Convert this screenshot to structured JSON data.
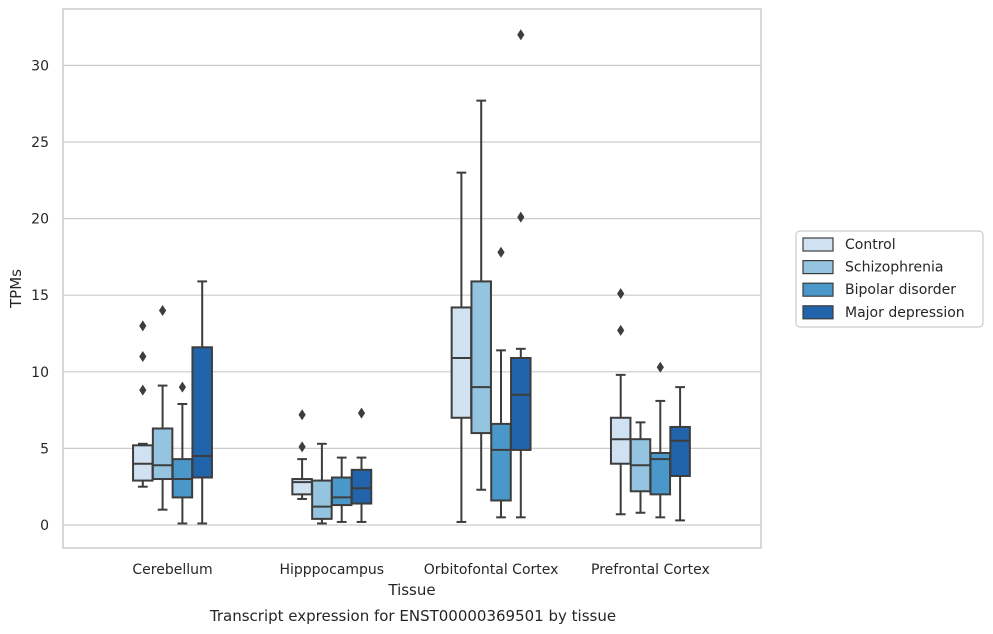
{
  "caption": "Transcript expression for ENST00000369501 by tissue",
  "chart_data": {
    "type": "box",
    "xlabel": "Tissue",
    "ylabel": "TPMs",
    "ylim": [
      -1.4,
      33.7
    ],
    "yticks": [
      0,
      5,
      10,
      15,
      20,
      25,
      30
    ],
    "grid": "horizontal",
    "legend_position": "right",
    "categories": [
      "Cerebellum",
      "Hipppocampus",
      "Orbitofontal Cortex",
      "Prefrontal Cortex"
    ],
    "series": [
      {
        "name": "Control",
        "color": "#d0e1f2",
        "boxes": [
          {
            "whislo": 2.5,
            "q1": 2.9,
            "med": 4.0,
            "q3": 5.2,
            "whishi": 5.3,
            "fliers": [
              8.8,
              11.0,
              13.0
            ]
          },
          {
            "whislo": 1.7,
            "q1": 2.0,
            "med": 2.8,
            "q3": 3.0,
            "whishi": 4.3,
            "fliers": [
              5.1,
              7.2
            ]
          },
          {
            "whislo": 0.2,
            "q1": 7.0,
            "med": 10.9,
            "q3": 14.2,
            "whishi": 23.0,
            "fliers": []
          },
          {
            "whislo": 0.7,
            "q1": 4.0,
            "med": 5.6,
            "q3": 7.0,
            "whishi": 9.8,
            "fliers": [
              12.7,
              15.1
            ]
          }
        ]
      },
      {
        "name": "Schizophrenia",
        "color": "#94c4df",
        "boxes": [
          {
            "whislo": 1.0,
            "q1": 3.0,
            "med": 3.9,
            "q3": 6.3,
            "whishi": 9.1,
            "fliers": [
              14.0
            ]
          },
          {
            "whislo": 0.1,
            "q1": 0.4,
            "med": 1.2,
            "q3": 2.9,
            "whishi": 5.3,
            "fliers": []
          },
          {
            "whislo": 2.3,
            "q1": 6.0,
            "med": 9.0,
            "q3": 15.9,
            "whishi": 27.7,
            "fliers": []
          },
          {
            "whislo": 0.8,
            "q1": 2.2,
            "med": 3.9,
            "q3": 5.6,
            "whishi": 6.7,
            "fliers": []
          }
        ]
      },
      {
        "name": "Bipolar disorder",
        "color": "#4a98c9",
        "boxes": [
          {
            "whislo": 0.1,
            "q1": 1.8,
            "med": 3.0,
            "q3": 4.3,
            "whishi": 7.9,
            "fliers": [
              9.0
            ]
          },
          {
            "whislo": 0.2,
            "q1": 1.3,
            "med": 1.8,
            "q3": 3.1,
            "whishi": 4.4,
            "fliers": []
          },
          {
            "whislo": 0.5,
            "q1": 1.6,
            "med": 4.9,
            "q3": 6.6,
            "whishi": 11.4,
            "fliers": [
              17.8
            ]
          },
          {
            "whislo": 0.5,
            "q1": 2.0,
            "med": 4.3,
            "q3": 4.7,
            "whishi": 8.1,
            "fliers": [
              10.3
            ]
          }
        ]
      },
      {
        "name": "Major depression",
        "color": "#2164ab",
        "boxes": [
          {
            "whislo": 0.1,
            "q1": 3.1,
            "med": 4.5,
            "q3": 11.6,
            "whishi": 15.9,
            "fliers": []
          },
          {
            "whislo": 0.2,
            "q1": 1.4,
            "med": 2.4,
            "q3": 3.6,
            "whishi": 4.4,
            "fliers": [
              7.3
            ]
          },
          {
            "whislo": 0.5,
            "q1": 4.9,
            "med": 8.5,
            "q3": 10.9,
            "whishi": 11.5,
            "fliers": [
              20.1,
              32.0
            ]
          },
          {
            "whislo": 0.3,
            "q1": 3.2,
            "med": 5.5,
            "q3": 6.4,
            "whishi": 9.0,
            "fliers": []
          }
        ]
      }
    ]
  }
}
